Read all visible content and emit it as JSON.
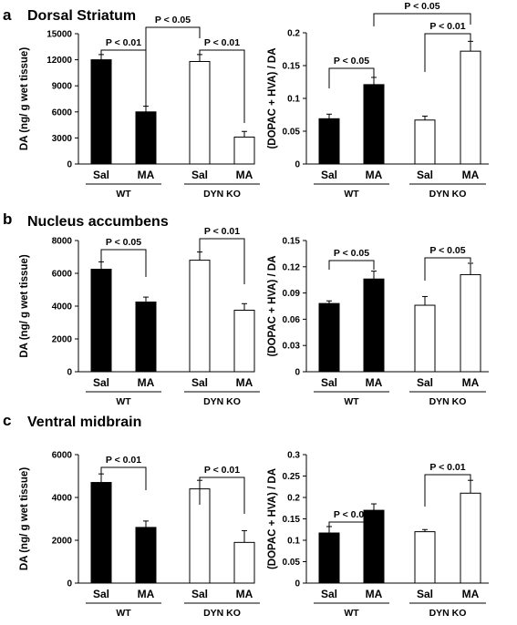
{
  "panels": [
    {
      "letter": "a",
      "title": "Dorsal Striatum"
    },
    {
      "letter": "b",
      "title": "Nucleus accumbens"
    },
    {
      "letter": "c",
      "title": "Ventral midbrain"
    }
  ],
  "colors": {
    "wt_fill": "#000000",
    "ko_fill": "#ffffff",
    "stroke": "#000000"
  },
  "chart_data": [
    {
      "type": "bar",
      "title": "Dorsal Striatum",
      "panel": "a",
      "ylabel": "DA (ng/ g wet tissue)",
      "xlabel": "",
      "ylim": [
        0,
        15000
      ],
      "yticks": [
        "0",
        "3000",
        "6000",
        "9000",
        "12000",
        "15000"
      ],
      "categories": [
        "Sal",
        "MA",
        "Sal",
        "MA"
      ],
      "groups": [
        {
          "label": "WT",
          "span": [
            0,
            1
          ]
        },
        {
          "label": "DYN KO",
          "span": [
            2,
            3
          ]
        }
      ],
      "values": [
        12000,
        6000,
        11800,
        3100
      ],
      "errors": [
        600,
        650,
        800,
        650
      ],
      "fills": [
        "filled",
        "filled",
        "open",
        "open"
      ],
      "comparisons": [
        {
          "from": 0,
          "to": 1,
          "label": "P < 0.01"
        },
        {
          "from": 1,
          "to": 2,
          "label": "P < 0.05"
        },
        {
          "from": 2,
          "to": 3,
          "label": "P < 0.01"
        }
      ]
    },
    {
      "type": "bar",
      "title": "",
      "panel": "a",
      "ylabel": "(DOPAC + HVA) / DA",
      "xlabel": "",
      "ylim": [
        0,
        0.2
      ],
      "yticks": [
        "0",
        "0.05",
        "0.1",
        "0.15",
        "0.2"
      ],
      "categories": [
        "Sal",
        "MA",
        "Sal",
        "MA"
      ],
      "groups": [
        {
          "label": "WT",
          "span": [
            0,
            1
          ]
        },
        {
          "label": "DYN KO",
          "span": [
            2,
            3
          ]
        }
      ],
      "values": [
        0.069,
        0.121,
        0.067,
        0.172
      ],
      "errors": [
        0.007,
        0.011,
        0.006,
        0.015
      ],
      "fills": [
        "filled",
        "filled",
        "open",
        "open"
      ],
      "comparisons": [
        {
          "from": 0,
          "to": 1,
          "label": "P < 0.05"
        },
        {
          "from": 1,
          "to": 3,
          "label": "P < 0.05"
        },
        {
          "from": 2,
          "to": 3,
          "label": "P < 0.01"
        }
      ]
    },
    {
      "type": "bar",
      "title": "Nucleus accumbens",
      "panel": "b",
      "ylabel": "DA (ng/ g wet tissue)",
      "xlabel": "",
      "ylim": [
        0,
        8000
      ],
      "yticks": [
        "0",
        "2000",
        "4000",
        "6000",
        "8000"
      ],
      "categories": [
        "Sal",
        "MA",
        "Sal",
        "MA"
      ],
      "groups": [
        {
          "label": "WT",
          "span": [
            0,
            1
          ]
        },
        {
          "label": "DYN KO",
          "span": [
            2,
            3
          ]
        }
      ],
      "values": [
        6250,
        4250,
        6800,
        3750
      ],
      "errors": [
        450,
        300,
        500,
        400
      ],
      "fills": [
        "filled",
        "filled",
        "open",
        "open"
      ],
      "comparisons": [
        {
          "from": 0,
          "to": 1,
          "label": "P < 0.05"
        },
        {
          "from": 2,
          "to": 3,
          "label": "P < 0.01"
        }
      ]
    },
    {
      "type": "bar",
      "title": "",
      "panel": "b",
      "ylabel": "(DOPAC + HVA) / DA",
      "xlabel": "",
      "ylim": [
        0,
        0.15
      ],
      "yticks": [
        "0",
        "0.03",
        "0.06",
        "0.09",
        "0.12",
        "0.15"
      ],
      "categories": [
        "Sal",
        "MA",
        "Sal",
        "MA"
      ],
      "groups": [
        {
          "label": "WT",
          "span": [
            0,
            1
          ]
        },
        {
          "label": "DYN KO",
          "span": [
            2,
            3
          ]
        }
      ],
      "values": [
        0.078,
        0.106,
        0.076,
        0.111
      ],
      "errors": [
        0.003,
        0.009,
        0.01,
        0.013
      ],
      "fills": [
        "filled",
        "filled",
        "open",
        "open"
      ],
      "comparisons": [
        {
          "from": 0,
          "to": 1,
          "label": "P < 0.05"
        },
        {
          "from": 2,
          "to": 3,
          "label": "P < 0.05"
        }
      ]
    },
    {
      "type": "bar",
      "title": "Ventral midbrain",
      "panel": "c",
      "ylabel": "DA (ng/ g wet tissue)",
      "xlabel": "",
      "ylim": [
        0,
        6000
      ],
      "yticks": [
        "0",
        "2000",
        "4000",
        "6000"
      ],
      "categories": [
        "Sal",
        "MA",
        "Sal",
        "MA"
      ],
      "groups": [
        {
          "label": "WT",
          "span": [
            0,
            1
          ]
        },
        {
          "label": "DYN KO",
          "span": [
            2,
            3
          ]
        }
      ],
      "values": [
        4700,
        2600,
        4400,
        1900
      ],
      "errors": [
        400,
        300,
        400,
        550
      ],
      "fills": [
        "filled",
        "filled",
        "open",
        "open"
      ],
      "comparisons": [
        {
          "from": 0,
          "to": 1,
          "label": "P < 0.01"
        },
        {
          "from": 2,
          "to": 3,
          "label": "P < 0.01"
        }
      ]
    },
    {
      "type": "bar",
      "title": "",
      "panel": "c",
      "ylabel": "(DOPAC + HVA) / DA",
      "xlabel": "",
      "ylim": [
        0,
        0.3
      ],
      "yticks": [
        "0",
        "0.05",
        "0.1",
        "0.15",
        "0.2",
        "0.25",
        "0.3"
      ],
      "categories": [
        "Sal",
        "MA",
        "Sal",
        "MA"
      ],
      "groups": [
        {
          "label": "WT",
          "span": [
            0,
            1
          ]
        },
        {
          "label": "DYN KO",
          "span": [
            2,
            3
          ]
        }
      ],
      "values": [
        0.117,
        0.17,
        0.12,
        0.21
      ],
      "errors": [
        0.015,
        0.015,
        0.005,
        0.03
      ],
      "fills": [
        "filled",
        "filled",
        "open",
        "open"
      ],
      "comparisons": [
        {
          "from": 0,
          "to": 1,
          "label": "P < 0.05"
        },
        {
          "from": 2,
          "to": 3,
          "label": "P < 0.01"
        }
      ]
    }
  ]
}
